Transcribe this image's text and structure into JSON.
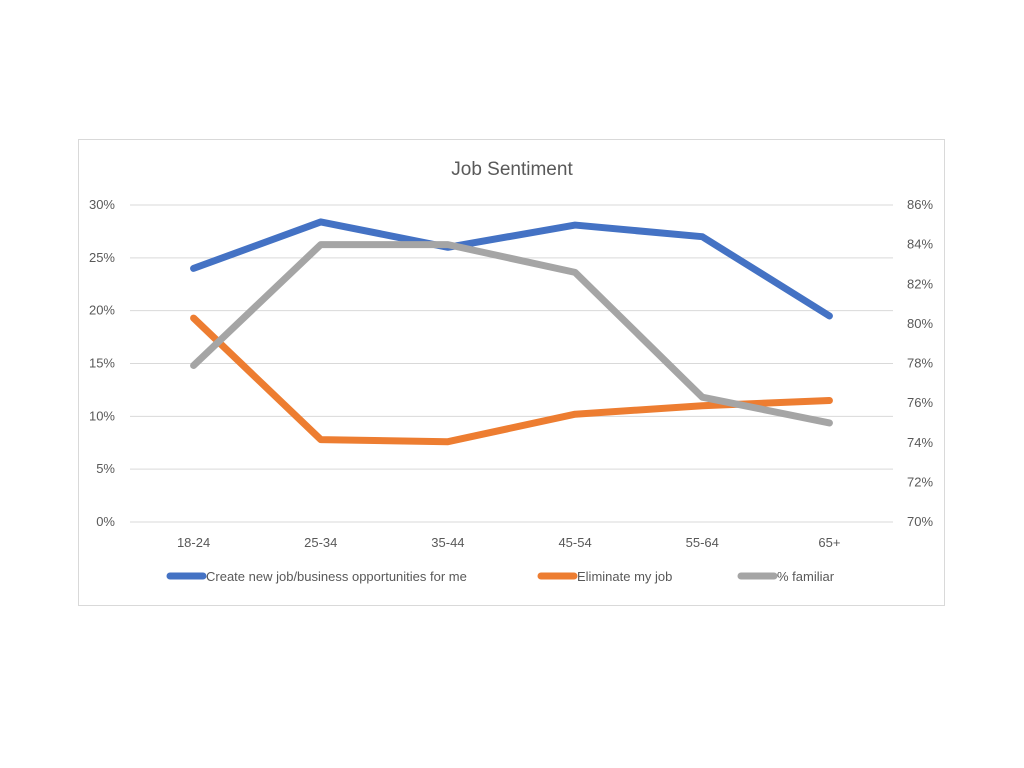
{
  "chart_data": {
    "type": "line",
    "title": "Job Sentiment",
    "categories": [
      "18-24",
      "25-34",
      "35-44",
      "45-54",
      "55-64",
      "65+"
    ],
    "y_left": {
      "min": 0,
      "max": 30,
      "step": 5,
      "ticks": [
        "0%",
        "5%",
        "10%",
        "15%",
        "20%",
        "25%",
        "30%"
      ]
    },
    "y_right": {
      "min": 70,
      "max": 86,
      "step": 2,
      "ticks": [
        "70%",
        "72%",
        "74%",
        "76%",
        "78%",
        "80%",
        "82%",
        "84%",
        "86%"
      ]
    },
    "grid": true,
    "legend_position": "bottom",
    "series": [
      {
        "name": "Create new job/business opportunities for me",
        "axis": "left",
        "color": "#4472C4",
        "values": [
          24.0,
          28.4,
          26.0,
          28.1,
          27.0,
          19.5
        ]
      },
      {
        "name": "Eliminate my job",
        "axis": "left",
        "color": "#ED7D31",
        "values": [
          19.3,
          7.8,
          7.6,
          10.2,
          11.0,
          11.5
        ]
      },
      {
        "name": "% familiar",
        "axis": "right",
        "color": "#A5A5A5",
        "values": [
          77.9,
          84.0,
          84.0,
          82.6,
          76.3,
          75.0
        ]
      }
    ]
  }
}
